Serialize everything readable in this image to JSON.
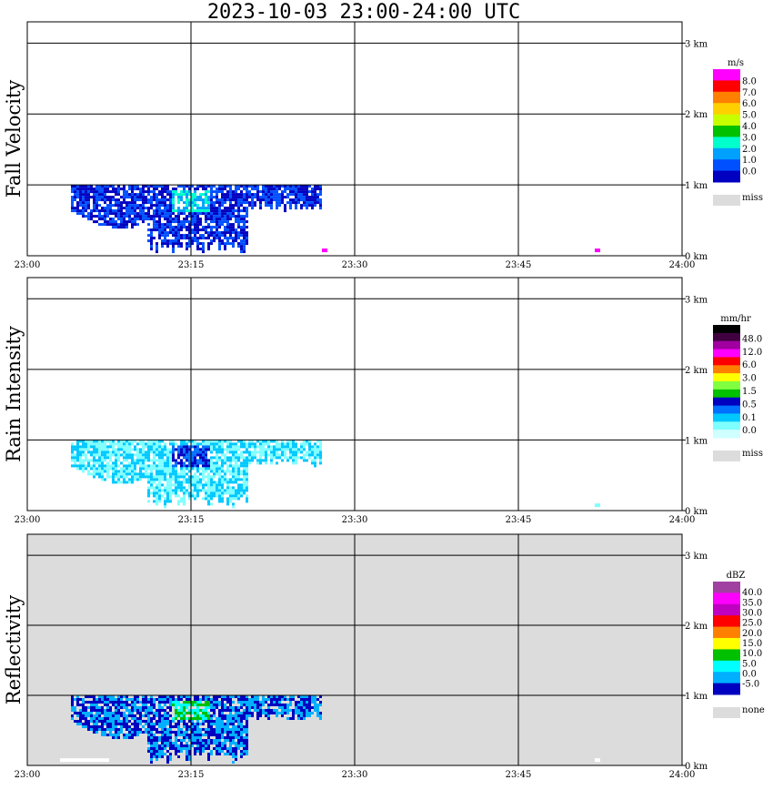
{
  "title": "2023-10-03   23:00-24:00 UTC",
  "chart_data": [
    {
      "type": "heatmap",
      "ylabel": "Fall Velocity",
      "x_ticks": [
        "23:00",
        "23:15",
        "23:30",
        "23:45",
        "24:00"
      ],
      "y_ticks": [
        "0 km",
        "1 km",
        "2 km",
        "3 km"
      ],
      "xlim": [
        "23:00",
        "24:00"
      ],
      "ylim_km": [
        0,
        3.3
      ],
      "colorbar": {
        "unit": "m/s",
        "labels": [
          "8.0",
          "7.0",
          "6.0",
          "5.0",
          "4.0",
          "3.0",
          "2.0",
          "1.0",
          "0.0"
        ],
        "colors": [
          "#ff00ff",
          "#ff0000",
          "#ff7f00",
          "#ffd000",
          "#c8ff00",
          "#00c000",
          "#00ffcc",
          "#00a0ff",
          "#0050ff",
          "#0000c0"
        ],
        "miss_label": "miss",
        "miss_color": "#dcdcdc"
      },
      "background": "#ffffff",
      "echo": {
        "top_km": 1.0,
        "time_start": "23:04",
        "time_end": "23:27",
        "dominant_values_ms": [
          0.5,
          1.5,
          2.5
        ]
      },
      "features": [
        {
          "time": "23:27",
          "height_km": 0.05,
          "color": "#ff00ff"
        },
        {
          "time": "23:52",
          "height_km": 0.05,
          "color": "#ff00ff"
        }
      ]
    },
    {
      "type": "heatmap",
      "ylabel": "Rain Intensity",
      "x_ticks": [
        "23:00",
        "23:15",
        "23:30",
        "23:45",
        "24:00"
      ],
      "y_ticks": [
        "0 km",
        "1 km",
        "2 km",
        "3 km"
      ],
      "xlim": [
        "23:00",
        "24:00"
      ],
      "ylim_km": [
        0,
        3.3
      ],
      "colorbar": {
        "unit": "mm/hr",
        "labels": [
          "48.0",
          "12.0",
          "6.0",
          "3.0",
          "1.5",
          "0.5",
          "0.1",
          "0.0"
        ],
        "colors": [
          "#000000",
          "#400040",
          "#a000a0",
          "#ff00ff",
          "#ff0000",
          "#ff8000",
          "#ffff00",
          "#80ff40",
          "#00c000",
          "#0000c0",
          "#0070ff",
          "#00c8ff",
          "#80ffff",
          "#d0ffff"
        ],
        "miss_label": "miss",
        "miss_color": "#dcdcdc"
      },
      "background": "#ffffff",
      "echo": {
        "top_km": 1.0,
        "time_start": "23:04",
        "time_end": "23:27",
        "dominant_values_mmhr": [
          0.1,
          0.5,
          1.5
        ]
      },
      "features": [
        {
          "time": "23:52",
          "height_km": 0.05,
          "color": "#80ffff"
        }
      ]
    },
    {
      "type": "heatmap",
      "ylabel": "Reflectivity",
      "x_ticks": [
        "23:00",
        "23:15",
        "23:30",
        "23:45",
        "24:00"
      ],
      "y_ticks": [
        "0 km",
        "1 km",
        "2 km",
        "3 km"
      ],
      "xlim": [
        "23:00",
        "24:00"
      ],
      "ylim_km": [
        0,
        3.3
      ],
      "colorbar": {
        "unit": "dBZ",
        "labels": [
          "40.0",
          "35.0",
          "30.0",
          "25.0",
          "20.0",
          "15.0",
          "10.0",
          "5.0",
          "0.0",
          "-5.0"
        ],
        "colors": [
          "#a040a0",
          "#ff00ff",
          "#c000c0",
          "#ff0000",
          "#ff8000",
          "#ffff00",
          "#00c000",
          "#00ffff",
          "#00b0ff",
          "#0000c0"
        ],
        "miss_label": "none",
        "miss_color": "#dcdcdc"
      },
      "background": "#dcdcdc",
      "echo": {
        "top_km": 1.0,
        "time_start": "23:04",
        "time_end": "23:27",
        "dominant_values_dbz": [
          0,
          5,
          15
        ]
      },
      "features": [
        {
          "time": "23:03",
          "height_km": 0.05,
          "color": "#ffffff"
        },
        {
          "time": "23:52",
          "height_km": 0.05,
          "color": "#ffffff"
        }
      ]
    }
  ]
}
